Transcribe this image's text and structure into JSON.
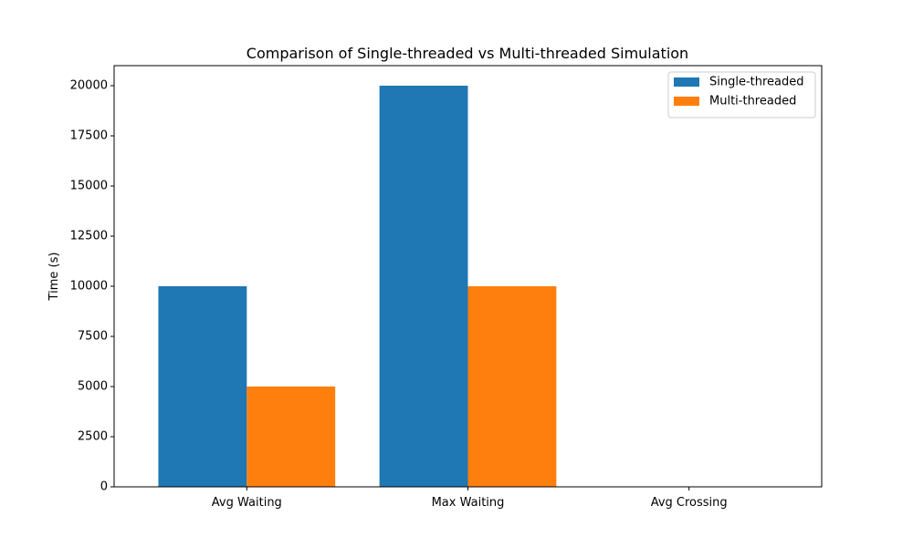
{
  "chart_data": {
    "type": "bar",
    "title": "Comparison of Single-threaded vs Multi-threaded Simulation",
    "xlabel": "",
    "ylabel": "Time (s)",
    "categories": [
      "Avg Waiting",
      "Max Waiting",
      "Avg Crossing"
    ],
    "series": [
      {
        "name": "Single-threaded",
        "color": "#1f77b4",
        "values": [
          10000,
          20000,
          0
        ]
      },
      {
        "name": "Multi-threaded",
        "color": "#ff7f0e",
        "values": [
          5000,
          10000,
          0
        ]
      }
    ],
    "ylim": [
      0,
      21000
    ],
    "yticks": [
      "0",
      "2500",
      "5000",
      "7500",
      "10000",
      "12500",
      "15000",
      "17500",
      "20000"
    ],
    "grid": false,
    "legend_position": "top-right"
  }
}
